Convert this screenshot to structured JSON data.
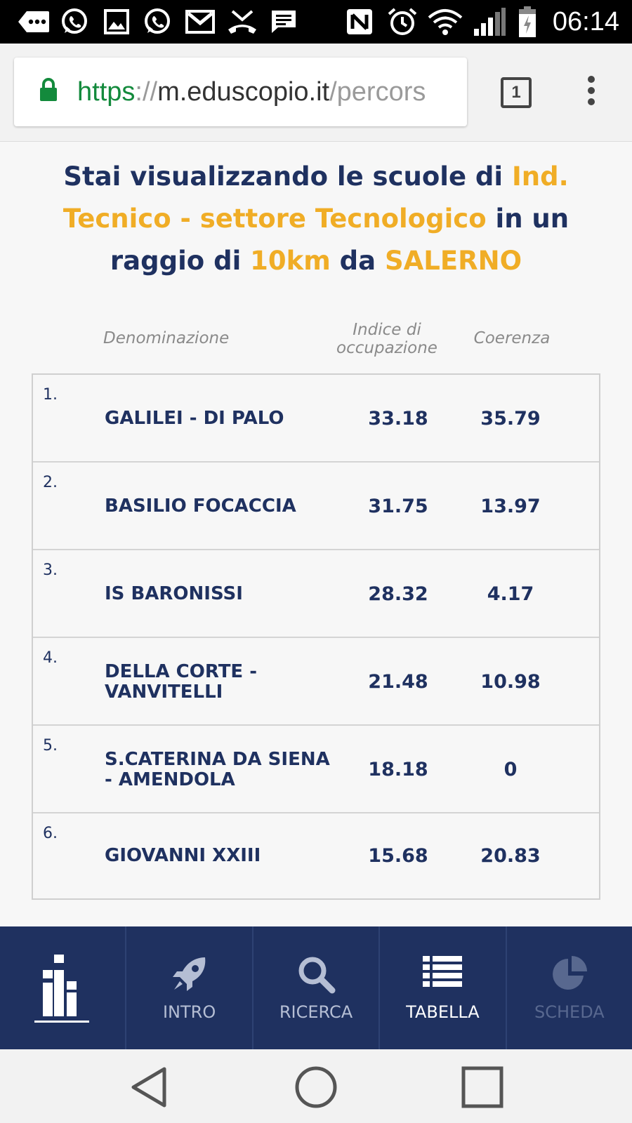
{
  "status_bar": {
    "time": "06:14",
    "icons": [
      "messages-icon",
      "whatsapp-icon",
      "gallery-icon",
      "whatsapp-icon",
      "gmail-icon",
      "missed-call-icon",
      "sms-icon",
      "nfc-icon",
      "alarm-icon",
      "wifi-icon",
      "signal-icon",
      "battery-icon"
    ]
  },
  "browser": {
    "url_scheme": "https",
    "url_separator": "://",
    "url_host": "m.eduscopio.it",
    "url_path": "/percors",
    "tab_count": "1",
    "lock_icon": "lock-icon",
    "menu_icon": "more-vert-icon"
  },
  "heading": {
    "part1": "Stai visualizzando le scuole di ",
    "highlight1": "Ind. Tecnico - settore Tecnologico",
    "part2": " in un raggio di ",
    "highlight2": "10km",
    "part3": " da ",
    "highlight3": "SALERNO"
  },
  "table": {
    "columns": {
      "name": "Denominazione",
      "occupation_line1": "Indice di",
      "occupation_line2": "occupazione",
      "coherence": "Coerenza"
    },
    "rows": [
      {
        "rank": "1.",
        "name": "GALILEI - DI PALO",
        "occupation": "33.18",
        "coherence": "35.79"
      },
      {
        "rank": "2.",
        "name": "BASILIO FOCACCIA",
        "occupation": "31.75",
        "coherence": "13.97"
      },
      {
        "rank": "3.",
        "name": "IS BARONISSI",
        "occupation": "28.32",
        "coherence": "4.17"
      },
      {
        "rank": "4.",
        "name": "DELLA CORTE - VANVITELLI",
        "occupation": "21.48",
        "coherence": "10.98"
      },
      {
        "rank": "5.",
        "name": "S.CATERINA DA SIENA - AMENDOLA",
        "occupation": "18.18",
        "coherence": "0"
      },
      {
        "rank": "6.",
        "name": "GIOVANNI XXIII",
        "occupation": "15.68",
        "coherence": "20.83"
      }
    ]
  },
  "bottom_nav": {
    "items": [
      {
        "label": "",
        "icon": "eduscopio-logo-icon",
        "state": "normal"
      },
      {
        "label": "INTRO",
        "icon": "rocket-icon",
        "state": "normal"
      },
      {
        "label": "RICERCA",
        "icon": "search-icon",
        "state": "normal"
      },
      {
        "label": "TABELLA",
        "icon": "list-icon",
        "state": "active"
      },
      {
        "label": "SCHEDA",
        "icon": "pie-chart-icon",
        "state": "disabled"
      }
    ]
  },
  "android_nav": {
    "back": "back-icon",
    "home": "home-icon",
    "recents": "recents-icon"
  },
  "colors": {
    "navy": "#1f3160",
    "accent": "#f0ad26",
    "secure_green": "#138a3c"
  }
}
